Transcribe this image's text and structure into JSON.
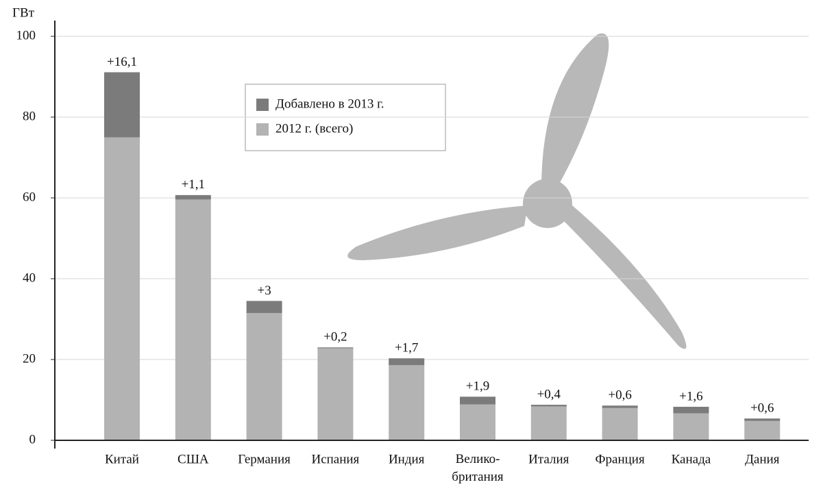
{
  "chart_data": {
    "type": "stacked-bar",
    "y_label": "ГВт",
    "categories": [
      "Китай",
      "США",
      "Германия",
      "Испания",
      "Индия",
      "Велико-\nбритания",
      "Италия",
      "Франция",
      "Канада",
      "Дания"
    ],
    "series": [
      {
        "name": "2012 г. (всего)",
        "color": "#b3b3b3",
        "values": [
          75.0,
          59.6,
          31.5,
          22.8,
          18.6,
          8.9,
          8.4,
          8.0,
          6.7,
          4.8
        ]
      },
      {
        "name": "Добавлено в 2013 г.",
        "color": "#7b7b7b",
        "values": [
          16.1,
          1.1,
          3,
          0.2,
          1.7,
          1.9,
          0.4,
          0.6,
          1.6,
          0.6
        ],
        "value_labels": [
          "+16,1",
          "+1,1",
          "+3",
          "+0,2",
          "+1,7",
          "+1,9",
          "+0,4",
          "+0,6",
          "+1,6",
          "+0,6"
        ]
      }
    ],
    "ylim": [
      0,
      100
    ],
    "yticks": [
      0,
      20,
      40,
      60,
      80,
      100
    ],
    "grid": true
  }
}
